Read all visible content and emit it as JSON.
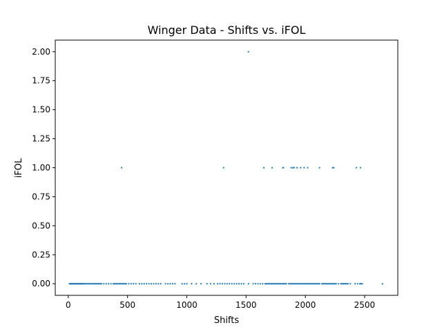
{
  "chart_data": {
    "type": "scatter",
    "title": "Winger Data - Shifts vs. iFOL",
    "xlabel": "Shifts",
    "ylabel": "iFOL",
    "xlim": [
      -110,
      2780
    ],
    "ylim": [
      -0.1,
      2.1
    ],
    "xticks": [
      0,
      500,
      1000,
      1500,
      2000,
      2500
    ],
    "yticks": [
      0.0,
      0.25,
      0.5,
      0.75,
      1.0,
      1.25,
      1.5,
      1.75,
      2.0
    ],
    "grid": false,
    "marker_color": "#1f77b4",
    "points": [
      [
        10,
        0
      ],
      [
        15,
        0
      ],
      [
        20,
        0
      ],
      [
        25,
        0
      ],
      [
        30,
        0
      ],
      [
        35,
        0
      ],
      [
        40,
        0
      ],
      [
        45,
        0
      ],
      [
        50,
        0
      ],
      [
        55,
        0
      ],
      [
        60,
        0
      ],
      [
        65,
        0
      ],
      [
        70,
        0
      ],
      [
        75,
        0
      ],
      [
        80,
        0
      ],
      [
        85,
        0
      ],
      [
        90,
        0
      ],
      [
        95,
        0
      ],
      [
        100,
        0
      ],
      [
        105,
        0
      ],
      [
        110,
        0
      ],
      [
        115,
        0
      ],
      [
        120,
        0
      ],
      [
        125,
        0
      ],
      [
        130,
        0
      ],
      [
        140,
        0
      ],
      [
        150,
        0
      ],
      [
        160,
        0
      ],
      [
        170,
        0
      ],
      [
        180,
        0
      ],
      [
        190,
        0
      ],
      [
        200,
        0
      ],
      [
        210,
        0
      ],
      [
        220,
        0
      ],
      [
        230,
        0
      ],
      [
        240,
        0
      ],
      [
        250,
        0
      ],
      [
        260,
        0
      ],
      [
        270,
        0
      ],
      [
        280,
        0
      ],
      [
        300,
        0
      ],
      [
        320,
        0
      ],
      [
        340,
        0
      ],
      [
        360,
        0
      ],
      [
        380,
        0
      ],
      [
        390,
        0
      ],
      [
        400,
        0
      ],
      [
        410,
        0
      ],
      [
        420,
        0
      ],
      [
        430,
        0
      ],
      [
        440,
        0
      ],
      [
        450,
        0
      ],
      [
        460,
        0
      ],
      [
        470,
        0
      ],
      [
        480,
        0
      ],
      [
        490,
        0
      ],
      [
        510,
        0
      ],
      [
        530,
        0
      ],
      [
        550,
        0
      ],
      [
        570,
        0
      ],
      [
        600,
        0
      ],
      [
        620,
        0
      ],
      [
        640,
        0
      ],
      [
        660,
        0
      ],
      [
        680,
        0
      ],
      [
        700,
        0
      ],
      [
        720,
        0
      ],
      [
        740,
        0
      ],
      [
        760,
        0
      ],
      [
        780,
        0
      ],
      [
        820,
        0
      ],
      [
        840,
        0
      ],
      [
        860,
        0
      ],
      [
        880,
        0
      ],
      [
        900,
        0
      ],
      [
        960,
        0
      ],
      [
        980,
        0
      ],
      [
        1000,
        0
      ],
      [
        1040,
        0
      ],
      [
        1080,
        0
      ],
      [
        1120,
        0
      ],
      [
        1170,
        0
      ],
      [
        1200,
        0
      ],
      [
        1230,
        0
      ],
      [
        1260,
        0
      ],
      [
        1280,
        0
      ],
      [
        1300,
        0
      ],
      [
        1320,
        0
      ],
      [
        1340,
        0
      ],
      [
        1360,
        0
      ],
      [
        1380,
        0
      ],
      [
        1400,
        0
      ],
      [
        1420,
        0
      ],
      [
        1440,
        0
      ],
      [
        1460,
        0
      ],
      [
        1480,
        0
      ],
      [
        1520,
        0
      ],
      [
        1560,
        0
      ],
      [
        1580,
        0
      ],
      [
        1600,
        0
      ],
      [
        1620,
        0
      ],
      [
        1640,
        0
      ],
      [
        1660,
        0
      ],
      [
        1670,
        0
      ],
      [
        1680,
        0
      ],
      [
        1690,
        0
      ],
      [
        1700,
        0
      ],
      [
        1710,
        0
      ],
      [
        1720,
        0
      ],
      [
        1730,
        0
      ],
      [
        1740,
        0
      ],
      [
        1750,
        0
      ],
      [
        1760,
        0
      ],
      [
        1770,
        0
      ],
      [
        1780,
        0
      ],
      [
        1790,
        0
      ],
      [
        1800,
        0
      ],
      [
        1810,
        0
      ],
      [
        1820,
        0
      ],
      [
        1830,
        0
      ],
      [
        1840,
        0
      ],
      [
        1860,
        0
      ],
      [
        1870,
        0
      ],
      [
        1880,
        0
      ],
      [
        1890,
        0
      ],
      [
        1900,
        0
      ],
      [
        1910,
        0
      ],
      [
        1920,
        0
      ],
      [
        1930,
        0
      ],
      [
        1940,
        0
      ],
      [
        1950,
        0
      ],
      [
        1960,
        0
      ],
      [
        1970,
        0
      ],
      [
        1980,
        0
      ],
      [
        1990,
        0
      ],
      [
        2000,
        0
      ],
      [
        2010,
        0
      ],
      [
        2020,
        0
      ],
      [
        2030,
        0
      ],
      [
        2040,
        0
      ],
      [
        2050,
        0
      ],
      [
        2060,
        0
      ],
      [
        2070,
        0
      ],
      [
        2080,
        0
      ],
      [
        2090,
        0
      ],
      [
        2100,
        0
      ],
      [
        2110,
        0
      ],
      [
        2120,
        0
      ],
      [
        2140,
        0
      ],
      [
        2150,
        0
      ],
      [
        2160,
        0
      ],
      [
        2170,
        0
      ],
      [
        2180,
        0
      ],
      [
        2190,
        0
      ],
      [
        2200,
        0
      ],
      [
        2210,
        0
      ],
      [
        2220,
        0
      ],
      [
        2230,
        0
      ],
      [
        2240,
        0
      ],
      [
        2250,
        0
      ],
      [
        2260,
        0
      ],
      [
        2280,
        0
      ],
      [
        2300,
        0
      ],
      [
        2310,
        0
      ],
      [
        2320,
        0
      ],
      [
        2330,
        0
      ],
      [
        2340,
        0
      ],
      [
        2350,
        0
      ],
      [
        2360,
        0
      ],
      [
        2380,
        0
      ],
      [
        2420,
        0
      ],
      [
        2440,
        0
      ],
      [
        2460,
        0
      ],
      [
        2470,
        0
      ],
      [
        2480,
        0
      ],
      [
        2650,
        0
      ],
      [
        450,
        1
      ],
      [
        1310,
        1
      ],
      [
        1650,
        1
      ],
      [
        1720,
        1
      ],
      [
        1810,
        1
      ],
      [
        1815,
        1
      ],
      [
        1880,
        1
      ],
      [
        1895,
        1
      ],
      [
        1905,
        1
      ],
      [
        1930,
        1
      ],
      [
        1960,
        1
      ],
      [
        1990,
        1
      ],
      [
        2020,
        1
      ],
      [
        2120,
        1
      ],
      [
        2230,
        1
      ],
      [
        2240,
        1
      ],
      [
        2430,
        1
      ],
      [
        2465,
        1
      ],
      [
        1520,
        2
      ]
    ]
  }
}
